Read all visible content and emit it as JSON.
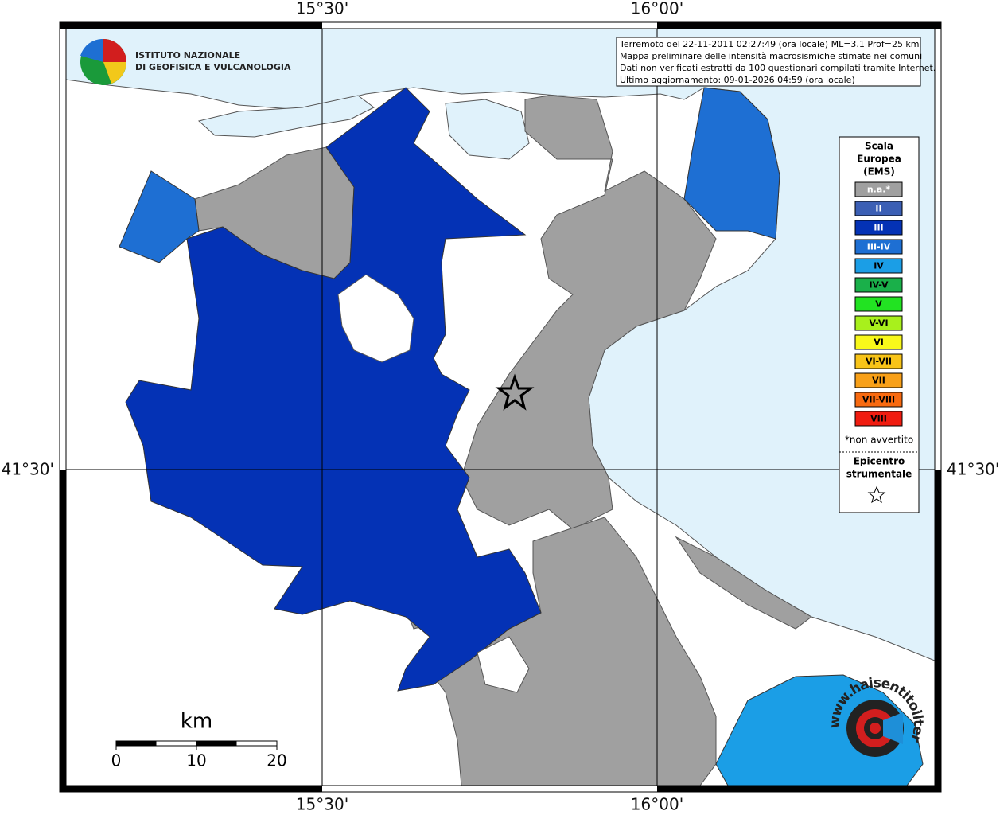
{
  "map": {
    "graticule": {
      "top": [
        "15°30'",
        "16°00'"
      ],
      "bottom": [
        "15°30'",
        "16°00'"
      ],
      "left": "41°30'",
      "right": "41°30'"
    },
    "logo": [
      "ISTITUTO NAZIONALE",
      "DI GEOFISICA E VULCANOLOGIA"
    ],
    "info": [
      "Terremoto del 22-11-2011 02:27:49 (ora locale) ML=3.1 Prof=25 km",
      "Mappa preliminare delle intensità macrosismiche stimate nei comuni",
      "Dati non verificati estratti da 100 questionari compilati tramite Internet.",
      "Ultimo aggiornamento: 09-01-2026 04:59 (ora locale)"
    ],
    "legend": {
      "title": [
        "Scala",
        "Europea",
        "(EMS)"
      ],
      "items": [
        {
          "label": "n.a.*",
          "color": "#a0a0a0"
        },
        {
          "label": "II",
          "color": "#3b5fb5"
        },
        {
          "label": "III",
          "color": "#0432b5"
        },
        {
          "label": "III-IV",
          "color": "#1e6fd3"
        },
        {
          "label": "IV",
          "color": "#1b9ee6"
        },
        {
          "label": "IV-V",
          "color": "#1ab04a"
        },
        {
          "label": "V",
          "color": "#22e322"
        },
        {
          "label": "V-VI",
          "color": "#a8f01c"
        },
        {
          "label": "VI",
          "color": "#f8f81a"
        },
        {
          "label": "VI-VII",
          "color": "#f8c418"
        },
        {
          "label": "VII",
          "color": "#f8a018"
        },
        {
          "label": "VII-VIII",
          "color": "#f86a10"
        },
        {
          "label": "VIII",
          "color": "#f01c10"
        }
      ],
      "note": "*non avvertito",
      "epicenter": [
        "Epicentro",
        "strumentale"
      ]
    },
    "scale_bar": {
      "unit": "km",
      "ticks": [
        0,
        10,
        20
      ]
    },
    "watermark": "www.haisentitoilterremoto.it"
  }
}
